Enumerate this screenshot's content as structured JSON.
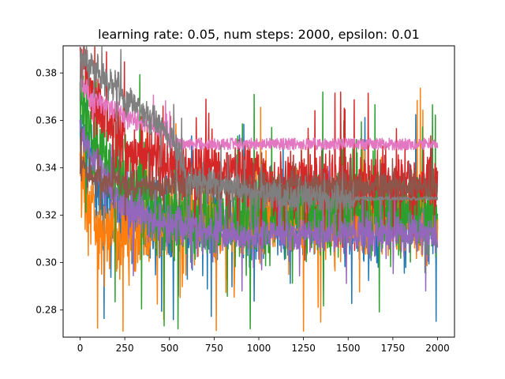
{
  "chart_data": {
    "type": "line",
    "title": "learning rate: 0.05, num steps: 2000, epsilon: 0.01",
    "xlabel": "",
    "ylabel": "",
    "xlim": [
      -95,
      2095
    ],
    "ylim": [
      0.2685,
      0.3915
    ],
    "xticks": [
      0,
      250,
      500,
      750,
      1000,
      1250,
      1500,
      1750,
      2000
    ],
    "xtick_labels": [
      "0",
      "250",
      "500",
      "750",
      "1000",
      "1250",
      "1500",
      "1750",
      "2000"
    ],
    "yticks": [
      0.28,
      0.3,
      0.32,
      0.34,
      0.36,
      0.38
    ],
    "ytick_labels": [
      "0.28",
      "0.30",
      "0.32",
      "0.34",
      "0.36",
      "0.38"
    ],
    "grid": false,
    "legend": "none",
    "series": [
      {
        "color": "#1f77b4",
        "points": [
          [
            0,
            0.36
          ],
          [
            100,
            0.33
          ],
          [
            250,
            0.318
          ],
          [
            500,
            0.318
          ],
          [
            750,
            0.318
          ],
          [
            1000,
            0.318
          ],
          [
            1250,
            0.318
          ],
          [
            1500,
            0.318
          ],
          [
            1750,
            0.318
          ],
          [
            2000,
            0.318
          ]
        ],
        "noise": 0.03,
        "lo": 0.27,
        "hi": 0.391
      },
      {
        "color": "#ff7f0e",
        "points": [
          [
            0,
            0.337
          ],
          [
            50,
            0.325
          ],
          [
            100,
            0.312
          ],
          [
            250,
            0.31
          ],
          [
            500,
            0.318
          ],
          [
            750,
            0.318
          ],
          [
            1000,
            0.318
          ],
          [
            1250,
            0.318
          ],
          [
            1500,
            0.318
          ],
          [
            1750,
            0.318
          ],
          [
            2000,
            0.318
          ]
        ],
        "noise": 0.028,
        "lo": 0.271,
        "hi": 0.391
      },
      {
        "color": "#2ca02c",
        "points": [
          [
            0,
            0.37
          ],
          [
            100,
            0.345
          ],
          [
            250,
            0.335
          ],
          [
            500,
            0.32
          ],
          [
            750,
            0.318
          ],
          [
            1000,
            0.32
          ],
          [
            1250,
            0.32
          ],
          [
            1500,
            0.32
          ],
          [
            1750,
            0.32
          ],
          [
            2000,
            0.32
          ]
        ],
        "noise": 0.032,
        "lo": 0.272,
        "hi": 0.391
      },
      {
        "color": "#d62728",
        "points": [
          [
            0,
            0.39
          ],
          [
            100,
            0.365
          ],
          [
            250,
            0.35
          ],
          [
            500,
            0.34
          ],
          [
            750,
            0.338
          ],
          [
            1000,
            0.335
          ],
          [
            1250,
            0.333
          ],
          [
            1500,
            0.333
          ],
          [
            1750,
            0.333
          ],
          [
            2000,
            0.333
          ]
        ],
        "noise": 0.022,
        "lo": 0.285,
        "hi": 0.391
      },
      {
        "color": "#9467bd",
        "points": [
          [
            0,
            0.355
          ],
          [
            100,
            0.34
          ],
          [
            250,
            0.322
          ],
          [
            500,
            0.315
          ],
          [
            750,
            0.312
          ],
          [
            1000,
            0.312
          ],
          [
            1250,
            0.312
          ],
          [
            1500,
            0.312
          ],
          [
            1750,
            0.312
          ],
          [
            2000,
            0.312
          ]
        ],
        "noise": 0.014,
        "lo": 0.288,
        "hi": 0.365
      },
      {
        "color": "#8c564b",
        "points": [
          [
            0,
            0.34
          ],
          [
            100,
            0.335
          ],
          [
            250,
            0.333
          ],
          [
            500,
            0.332
          ],
          [
            750,
            0.332
          ],
          [
            1000,
            0.332
          ],
          [
            1250,
            0.332
          ],
          [
            1500,
            0.332
          ],
          [
            1750,
            0.332
          ],
          [
            2000,
            0.332
          ]
        ],
        "noise": 0.01,
        "lo": 0.305,
        "hi": 0.365
      },
      {
        "color": "#e377c2",
        "points": [
          [
            0,
            0.375
          ],
          [
            100,
            0.368
          ],
          [
            250,
            0.362
          ],
          [
            480,
            0.355
          ],
          [
            540,
            0.35
          ],
          [
            2000,
            0.35
          ]
        ],
        "noise": 0.008,
        "flat_from": 540,
        "flat_value": 0.35,
        "flat_band": 0.0025,
        "lo": 0.34,
        "hi": 0.388
      },
      {
        "color": "#7f7f7f",
        "points": [
          [
            0,
            0.388
          ],
          [
            100,
            0.38
          ],
          [
            250,
            0.37
          ],
          [
            500,
            0.355
          ],
          [
            600,
            0.335
          ],
          [
            1000,
            0.328
          ],
          [
            1250,
            0.327
          ],
          [
            1500,
            0.326
          ],
          [
            1540,
            0.327
          ],
          [
            2000,
            0.327
          ]
        ],
        "noise": 0.012,
        "flat_from": 1540,
        "flat_value": 0.327,
        "flat_band": 0.0008,
        "lo": 0.312,
        "hi": 0.391
      }
    ]
  }
}
